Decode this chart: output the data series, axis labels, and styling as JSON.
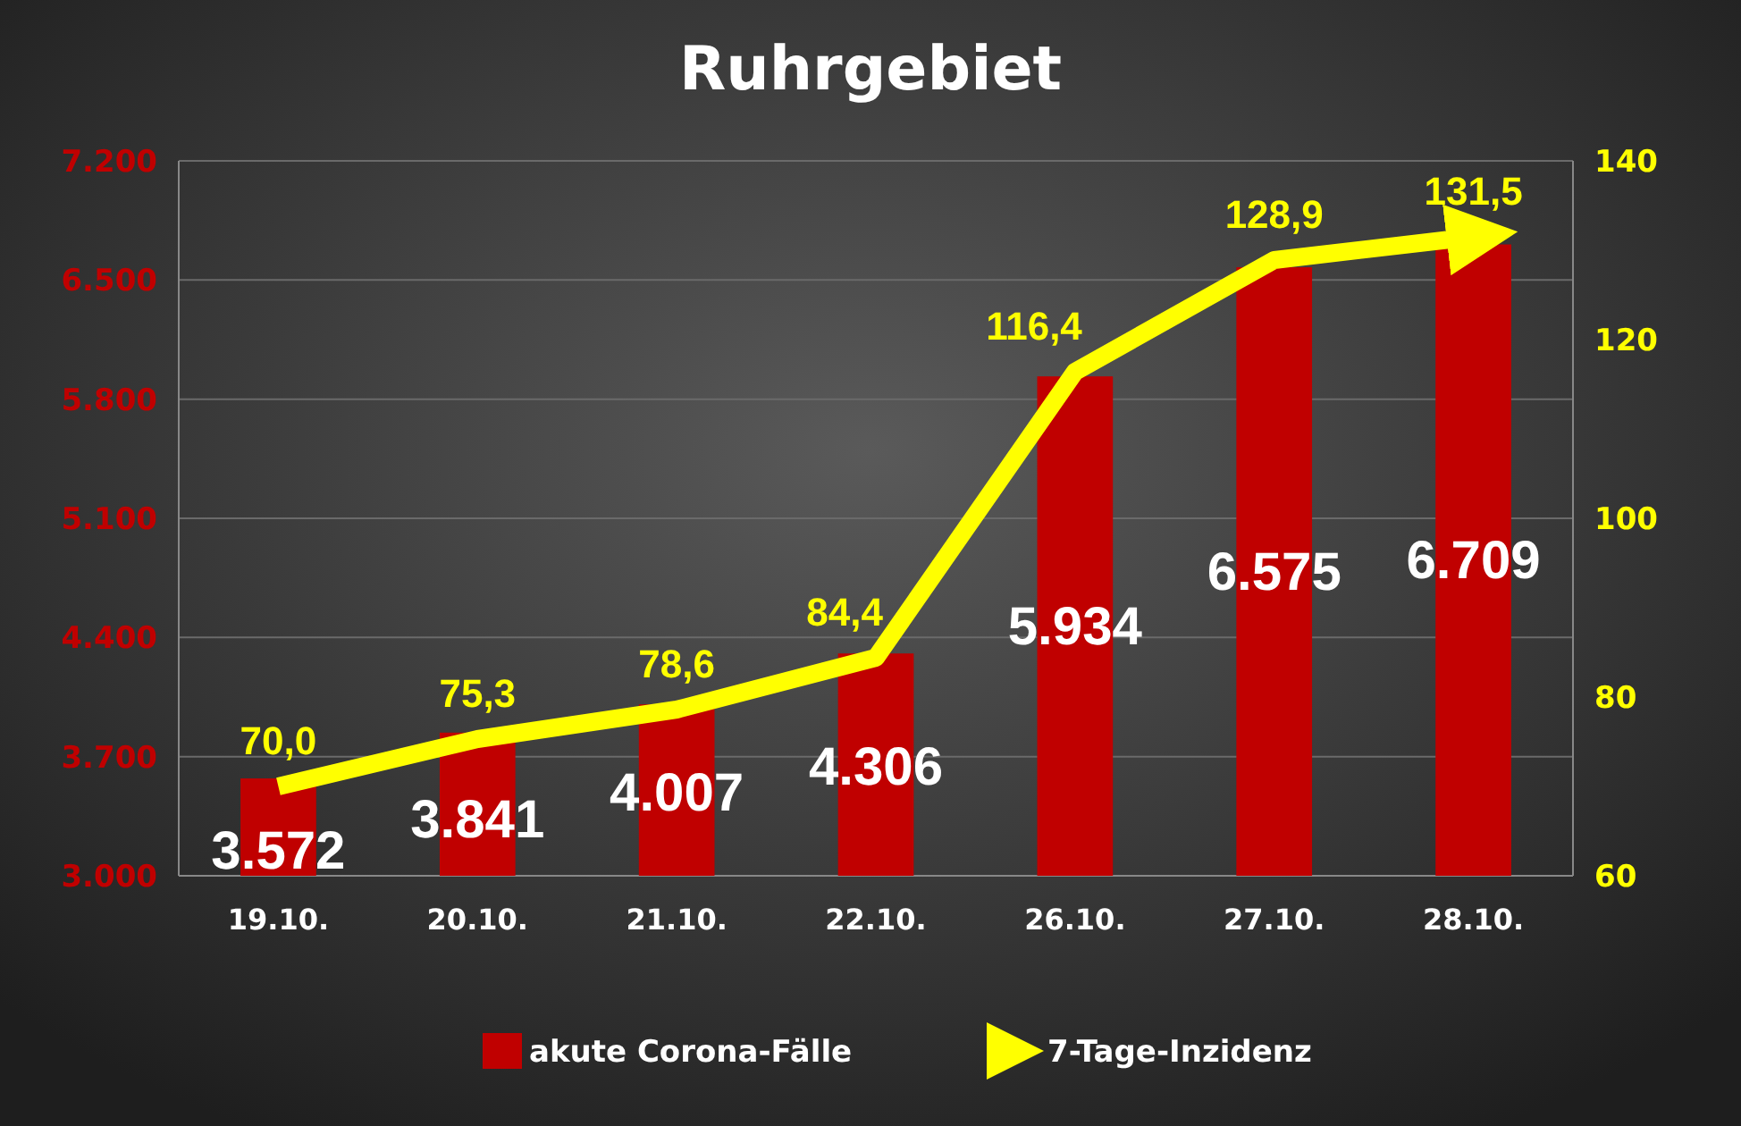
{
  "chart_data": {
    "type": "bar",
    "title": "Ruhrgebiet",
    "categories": [
      "19.10.",
      "20.10.",
      "21.10.",
      "22.10.",
      "26.10.",
      "27.10.",
      "28.10."
    ],
    "series": [
      {
        "name": "akute Corona-Fälle",
        "color": "#c00000",
        "values": [
          3572,
          3841,
          4007,
          4306,
          5934,
          6575,
          6709
        ],
        "value_labels": [
          "3.572",
          "3.841",
          "4.007",
          "4.306",
          "5.934",
          "6.575",
          "6.709"
        ]
      },
      {
        "name": "7-Tage-Inzidenz",
        "type": "line",
        "axis": "y2",
        "color": "#ffff00",
        "values": [
          70.0,
          75.3,
          78.6,
          84.4,
          116.4,
          128.9,
          131.5
        ],
        "value_labels": [
          "70,0",
          "75,3",
          "78,6",
          "84,4",
          "116,4",
          "128,9",
          "131,5"
        ]
      }
    ],
    "ylim": [
      3000,
      7200
    ],
    "yticks": [
      {
        "value": 3000,
        "label": "3.000"
      },
      {
        "value": 3700,
        "label": "3.700"
      },
      {
        "value": 4400,
        "label": "4.400"
      },
      {
        "value": 5100,
        "label": "5.100"
      },
      {
        "value": 5800,
        "label": "5.800"
      },
      {
        "value": 6500,
        "label": "6.500"
      },
      {
        "value": 7200,
        "label": "7.200"
      }
    ],
    "y2lim": [
      60,
      140
    ],
    "y2ticks": [
      60,
      80,
      100,
      120,
      140
    ],
    "grid": "y",
    "legend": "bottom"
  }
}
